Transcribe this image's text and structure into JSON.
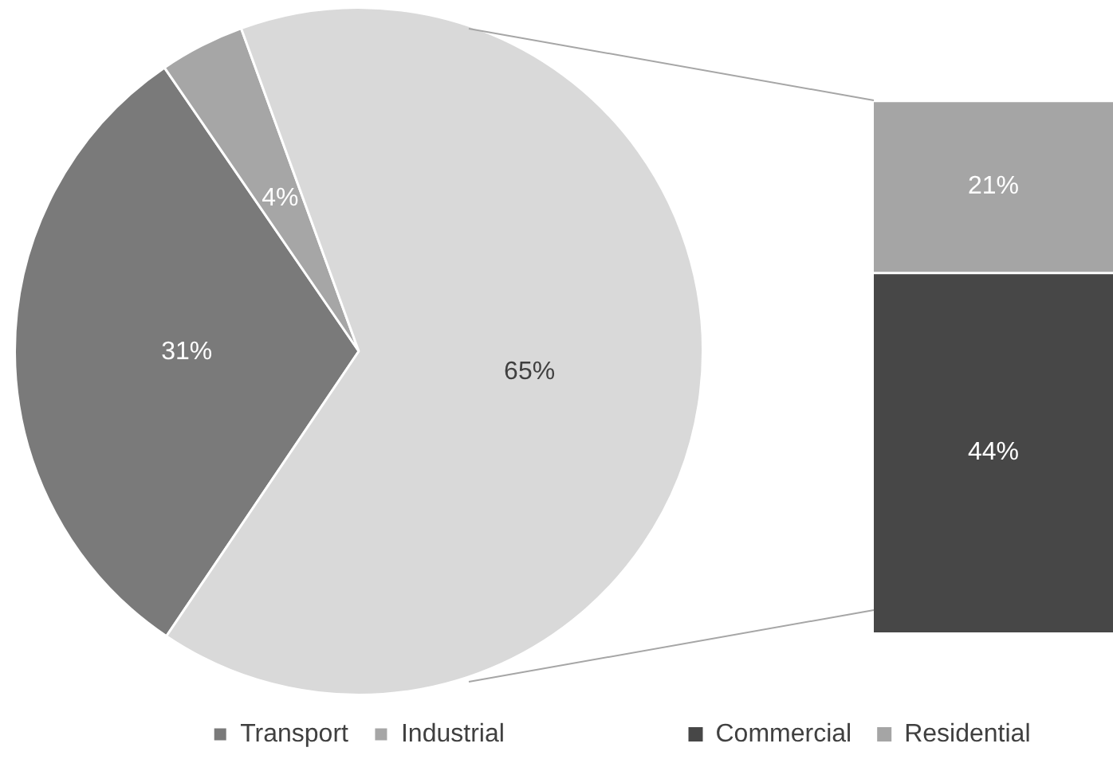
{
  "chart_data": [
    {
      "type": "pie",
      "categories": [
        "Transport",
        "Industrial",
        null
      ],
      "values": [
        31,
        4,
        65
      ],
      "colors": [
        "#7a7a7a",
        "#a6a6a6",
        "#d9d9d9"
      ],
      "value_labels": [
        "31%",
        "4%",
        "65%"
      ],
      "legend": "bottom"
    },
    {
      "type": "bar",
      "stacked": true,
      "categories": [
        null
      ],
      "series": [
        {
          "name": "Commercial",
          "color": "#474747",
          "values": [
            44
          ],
          "value_labels": [
            "44%"
          ]
        },
        {
          "name": "Residential",
          "color": "#a5a5a5",
          "values": [
            21
          ],
          "value_labels": [
            "21%"
          ]
        }
      ],
      "legend": "bottom"
    }
  ]
}
